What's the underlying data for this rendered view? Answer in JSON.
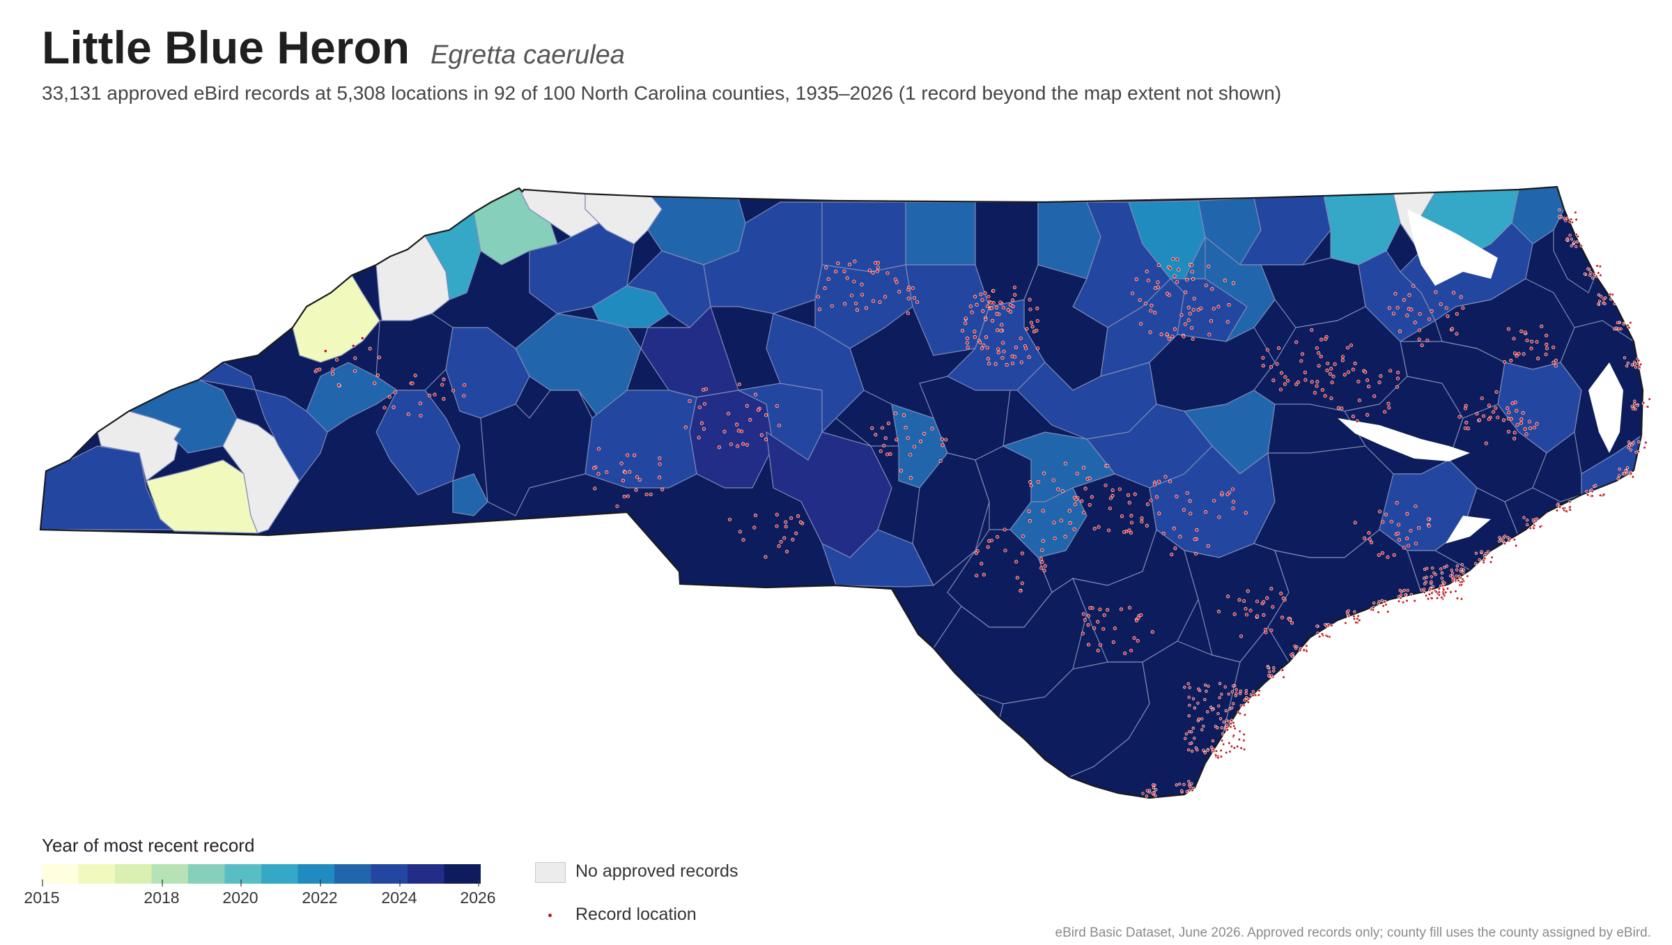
{
  "header": {
    "title": "Little Blue Heron",
    "scientific_name": "Egretta caerulea",
    "subtitle": "33,131 approved eBird records at 5,308 locations in 92 of 100 North Carolina counties, 1935–2026 (1 record beyond the map extent not shown)"
  },
  "legend": {
    "title": "Year of most recent record",
    "ticks": [
      "2015",
      "2018",
      "2020",
      "2022",
      "2024",
      "2026"
    ],
    "palette": [
      "#ffffe0",
      "#f1f9bd",
      "#d9f0b2",
      "#b6e2b6",
      "#86cfbb",
      "#58bec4",
      "#34a8c6",
      "#1f8bbf",
      "#2166ac",
      "#2346a0",
      "#222d87",
      "#0c1c5c"
    ],
    "no_data_label": "No approved records",
    "no_data_color": "#ececec",
    "record_label": "Record location",
    "record_color": "#c0141a"
  },
  "credit": "eBird Basic Dataset, June 2026. Approved records only; county fill uses the county assigned by eBird.",
  "map": {
    "state_fill": "#0c1c5c",
    "county_border_color": "#7e8bb8",
    "outline_color": "#1a1a1a"
  }
}
